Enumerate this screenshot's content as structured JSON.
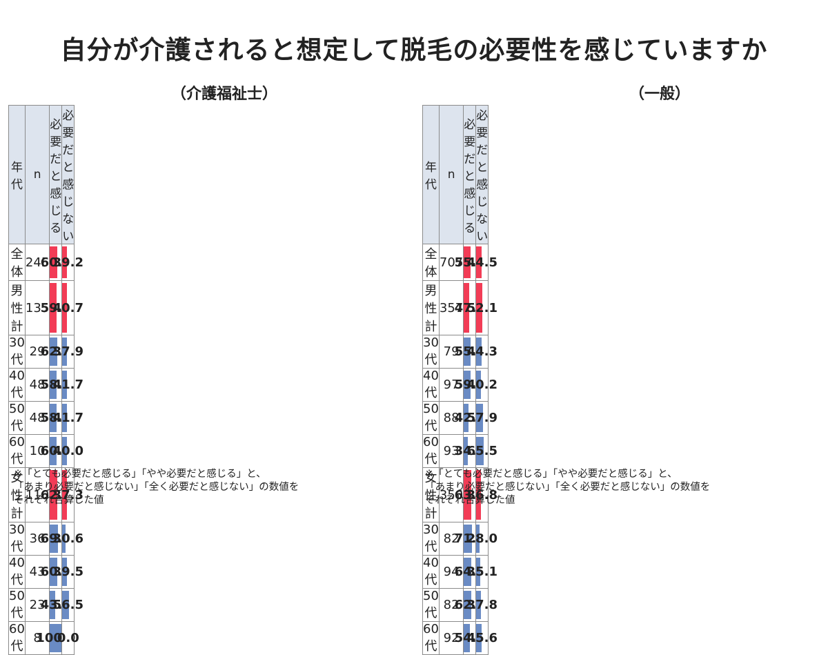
{
  "title": "自分が介護されると想定して脱毛の必要性を感じていますか",
  "chart_data": [
    {
      "type": "table",
      "title": "（介護福祉士）",
      "columns": [
        "年代",
        "n",
        "必要だと感じる",
        "必要だと感じない"
      ],
      "rows": [
        {
          "label": "全体",
          "n": "245",
          "need": "60.8",
          "noneed": "39.2",
          "color": "red"
        },
        {
          "label": "男性計",
          "n": "135",
          "need": "59.3",
          "noneed": "40.7",
          "color": "red"
        },
        {
          "label": "30代",
          "n": "29",
          "need": "62.1",
          "noneed": "37.9",
          "color": "blue"
        },
        {
          "label": "40代",
          "n": "48",
          "need": "58.3",
          "noneed": "41.7",
          "color": "blue"
        },
        {
          "label": "50代",
          "n": "48",
          "need": "58.3",
          "noneed": "41.7",
          "color": "blue"
        },
        {
          "label": "60代",
          "n": "10",
          "need": "60.0",
          "noneed": "40.0",
          "color": "blue"
        },
        {
          "label": "女性計",
          "n": "110",
          "need": "62.7",
          "noneed": "37.3",
          "color": "red"
        },
        {
          "label": "30代",
          "n": "36",
          "need": "69.4",
          "noneed": "30.6",
          "color": "blue"
        },
        {
          "label": "40代",
          "n": "43",
          "need": "60.5",
          "noneed": "39.5",
          "color": "blue"
        },
        {
          "label": "50代",
          "n": "23",
          "need": "43.5",
          "noneed": "56.5",
          "color": "blue"
        },
        {
          "label": "60代",
          "n": "8",
          "need": "100.0",
          "noneed": "0.0",
          "color": "blue"
        }
      ],
      "bar_max": 100,
      "note": [
        "※「とても必要だと感じる」「やや必要だと感じる」と、",
        "「あまり必要だと感じない」「全く必要だと感じない」の数値を",
        "それぞれ合算した値"
      ]
    },
    {
      "type": "table",
      "title": "（一般）",
      "columns": [
        "年代",
        "n",
        "必要だと感じる",
        "必要だと感じない"
      ],
      "rows": [
        {
          "label": "全体",
          "n": "707",
          "need": "55.4",
          "noneed": "44.5",
          "color": "red"
        },
        {
          "label": "男性計",
          "n": "357",
          "need": "47.8",
          "noneed": "52.1",
          "color": "red"
        },
        {
          "label": "30代",
          "n": "79",
          "need": "55.6",
          "noneed": "44.3",
          "color": "blue"
        },
        {
          "label": "40代",
          "n": "97",
          "need": "59.7",
          "noneed": "40.2",
          "color": "blue"
        },
        {
          "label": "50代",
          "n": "88",
          "need": "42.0",
          "noneed": "57.9",
          "color": "blue"
        },
        {
          "label": "60代",
          "n": "93",
          "need": "34.4",
          "noneed": "65.5",
          "color": "blue"
        },
        {
          "label": "女性計",
          "n": "350",
          "need": "63.1",
          "noneed": "36.8",
          "color": "red"
        },
        {
          "label": "30代",
          "n": "82",
          "need": "71.9",
          "noneed": "28.0",
          "color": "blue"
        },
        {
          "label": "40代",
          "n": "94",
          "need": "64.8",
          "noneed": "35.1",
          "color": "blue"
        },
        {
          "label": "50代",
          "n": "82",
          "need": "62.1",
          "noneed": "37.8",
          "color": "blue"
        },
        {
          "label": "60代",
          "n": "92",
          "need": "54.3",
          "noneed": "45.6",
          "color": "blue"
        }
      ],
      "bar_max": 100,
      "note": [
        "※「とても必要だと感じる」「やや必要だと感じる」と、",
        "「あまり必要だと感じない」「全く必要だと感じない」の数値を",
        "それぞれ合算した値"
      ]
    }
  ],
  "colors": {
    "red": "#f23c56",
    "blue": "#6a8bc4",
    "header": "#dde4ee"
  }
}
